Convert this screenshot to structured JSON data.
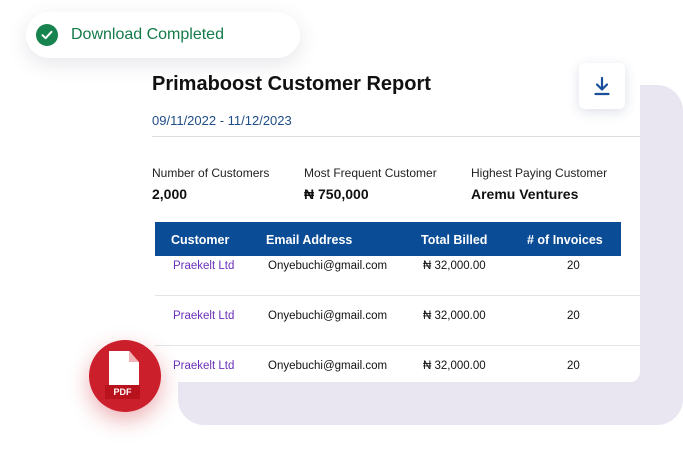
{
  "toast": {
    "label": "Download Completed"
  },
  "report": {
    "title": "Primaboost Customer Report",
    "date_range": "09/11/2022 - 11/12/2023"
  },
  "stats": [
    {
      "label": "Number of Customers",
      "value": "2,000"
    },
    {
      "label": "Most Frequent Customer",
      "value": "₦ 750,000"
    },
    {
      "label": "Highest Paying Customer",
      "value": "Aremu Ventures"
    }
  ],
  "table": {
    "headers": [
      "Customer",
      "Email Address",
      "Total Billed",
      "# of Invoices"
    ],
    "rows": [
      {
        "customer": "Praekelt Ltd",
        "email": "Onyebuchi@gmail.com",
        "total": "₦ 32,000.00",
        "invoices": "20"
      },
      {
        "customer": "Praekelt Ltd",
        "email": "Onyebuchi@gmail.com",
        "total": "₦ 32,000.00",
        "invoices": "20"
      },
      {
        "customer": "Praekelt Ltd",
        "email": "Onyebuchi@gmail.com",
        "total": "₦ 32,000.00",
        "invoices": "20"
      }
    ]
  },
  "pdf_badge": {
    "label": "PDF"
  },
  "icons": {
    "toast": "check-circle-icon",
    "download": "download-arrow-icon",
    "pdf": "pdf-file-icon"
  },
  "colors": {
    "success": "#137a49",
    "table_header": "#0b4c96",
    "customer_link": "#6b2fb8",
    "pdf_red": "#cc1f2c",
    "backdrop": "#e9e6f2"
  }
}
